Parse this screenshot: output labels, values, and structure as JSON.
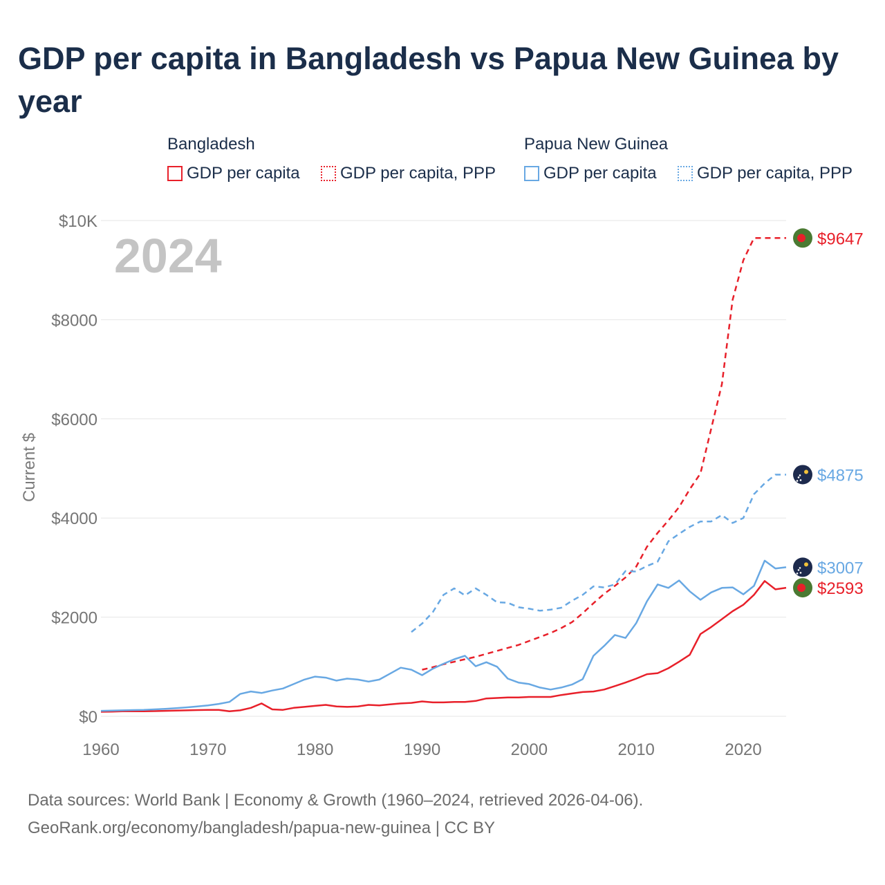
{
  "title": "GDP per capita in Bangladesh vs Papua New Guinea by year",
  "legend": {
    "groups": [
      {
        "name": "Bangladesh",
        "items": [
          {
            "label": "GDP per capita",
            "style": "solid",
            "color": "#e8202a"
          },
          {
            "label": "GDP per capita, PPP",
            "style": "dotted",
            "color": "#e8202a"
          }
        ]
      },
      {
        "name": "Papua New Guinea",
        "items": [
          {
            "label": "GDP per capita",
            "style": "solid",
            "color": "#68a8e3"
          },
          {
            "label": "GDP per capita, PPP",
            "style": "dotted",
            "color": "#68a8e3"
          }
        ]
      }
    ]
  },
  "footer": {
    "line1": "Data sources: World Bank | Economy & Growth (1960–2024, retrieved 2026-04-06).",
    "line2": "GeoRank.org/economy/bangladesh/papua-new-guinea | CC BY"
  },
  "chart_data": {
    "type": "line",
    "year_label": "2024",
    "ylabel": "Current $",
    "xlim": [
      1960,
      2024
    ],
    "ylim": [
      0,
      10000
    ],
    "x_ticks": [
      1960,
      1970,
      1980,
      1990,
      2000,
      2010,
      2020
    ],
    "y_ticks": [
      0,
      2000,
      4000,
      6000,
      8000,
      10000
    ],
    "y_tick_labels": [
      "$0",
      "$2000",
      "$4000",
      "$6000",
      "$8000",
      "$10K"
    ],
    "series": [
      {
        "name": "Bangladesh GDP per capita",
        "country": "Bangladesh",
        "color": "#e8202a",
        "dash": false,
        "flag": "bangladesh",
        "end_label": "$2593",
        "start_year": 1960,
        "values": [
          90,
          95,
          100,
          100,
          100,
          105,
          110,
          115,
          120,
          125,
          130,
          130,
          100,
          120,
          170,
          260,
          140,
          130,
          170,
          190,
          210,
          230,
          200,
          190,
          200,
          230,
          220,
          240,
          260,
          270,
          300,
          280,
          280,
          290,
          290,
          310,
          360,
          370,
          380,
          380,
          390,
          390,
          390,
          430,
          460,
          490,
          500,
          540,
          610,
          680,
          760,
          850,
          870,
          970,
          1100,
          1240,
          1660,
          1800,
          1960,
          2120,
          2250,
          2450,
          2730,
          2560,
          2593
        ]
      },
      {
        "name": "Bangladesh GDP per capita, PPP",
        "country": "Bangladesh",
        "color": "#e8202a",
        "dash": true,
        "flag": "bangladesh",
        "end_label": "$9647",
        "start_year": 1990,
        "values": [
          940,
          990,
          1050,
          1100,
          1150,
          1200,
          1260,
          1320,
          1380,
          1440,
          1520,
          1600,
          1680,
          1780,
          1900,
          2080,
          2280,
          2470,
          2630,
          2800,
          3020,
          3420,
          3700,
          3950,
          4220,
          4580,
          4900,
          5800,
          6700,
          8400,
          9200,
          9647,
          9647,
          9647,
          9647
        ]
      },
      {
        "name": "Papua New Guinea GDP per capita",
        "country": "Papua New Guinea",
        "color": "#68a8e3",
        "dash": false,
        "flag": "png",
        "end_label": "$3007",
        "start_year": 1960,
        "values": [
          110,
          115,
          120,
          125,
          130,
          140,
          150,
          165,
          180,
          200,
          220,
          250,
          290,
          450,
          500,
          470,
          520,
          560,
          650,
          740,
          800,
          780,
          720,
          760,
          740,
          700,
          740,
          860,
          980,
          940,
          830,
          960,
          1060,
          1150,
          1220,
          1010,
          1090,
          1000,
          760,
          680,
          650,
          580,
          540,
          580,
          640,
          750,
          1220,
          1420,
          1640,
          1580,
          1880,
          2320,
          2660,
          2590,
          2740,
          2520,
          2350,
          2500,
          2590,
          2600,
          2460,
          2630,
          3140,
          2980,
          3007
        ]
      },
      {
        "name": "Papua New Guinea GDP per capita, PPP",
        "country": "Papua New Guinea",
        "color": "#68a8e3",
        "dash": true,
        "flag": "png",
        "end_label": "$4875",
        "start_year": 1989,
        "values": [
          1700,
          1870,
          2100,
          2450,
          2580,
          2440,
          2580,
          2450,
          2300,
          2290,
          2200,
          2170,
          2130,
          2150,
          2190,
          2330,
          2450,
          2620,
          2600,
          2660,
          2930,
          2920,
          3030,
          3120,
          3530,
          3680,
          3820,
          3930,
          3930,
          4060,
          3900,
          4000,
          4480,
          4700,
          4875,
          4875
        ]
      }
    ]
  }
}
